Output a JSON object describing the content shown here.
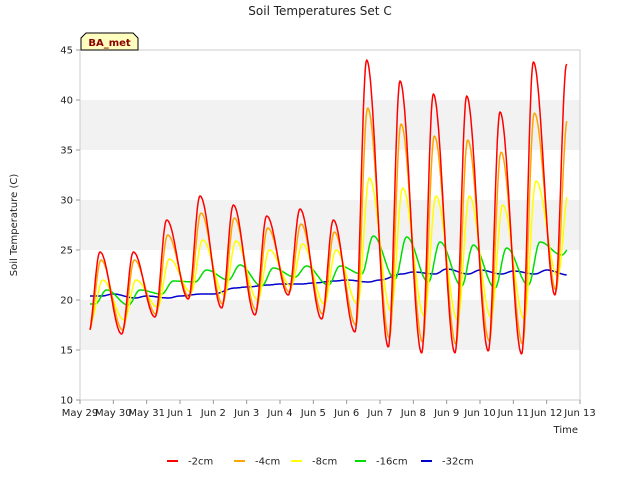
{
  "chart_data": {
    "type": "line",
    "title": "Soil Temperatures Set C",
    "xlabel": "Time",
    "ylabel": "Soil Temperature (C)",
    "badge": "BA_met",
    "ylim": [
      10,
      45
    ],
    "yticks": [
      10,
      15,
      20,
      25,
      30,
      35,
      40,
      45
    ],
    "xlim": [
      "2024-05-29",
      "2024-06-13"
    ],
    "xtick_labels": [
      "May 29",
      "May 30",
      "May 31",
      "Jun 1",
      "Jun 2",
      "Jun 3",
      "Jun 4",
      "Jun 5",
      "Jun 6",
      "Jun 7",
      "Jun 8",
      "Jun 9",
      "Jun 10",
      "Jun 11",
      "Jun 12",
      "Jun 13"
    ],
    "grid": "horizontal bands",
    "legend_position": "bottom",
    "x_dates_daily": [
      "May 29",
      "May 30",
      "May 31",
      "Jun 1",
      "Jun 2",
      "Jun 3",
      "Jun 4",
      "Jun 5",
      "Jun 6",
      "Jun 7",
      "Jun 8",
      "Jun 9",
      "Jun 10",
      "Jun 11",
      "Jun 12"
    ],
    "series": [
      {
        "name": "-2cm",
        "color": "#ff0000",
        "daily_max": [
          null,
          24.8,
          28.0,
          30.4,
          29.5,
          28.4,
          29.1,
          28.0,
          44.0,
          41.9,
          40.6,
          40.4,
          38.8,
          43.8,
          43.6
        ],
        "daily_min": [
          16.6,
          16.6,
          18.3,
          20.1,
          19.2,
          18.5,
          20.5,
          18.1,
          16.8,
          15.3,
          14.7,
          14.7,
          14.9,
          14.6,
          20.5
        ]
      },
      {
        "name": "-4cm",
        "color": "#ffa500",
        "daily_max": [
          null,
          24.0,
          26.5,
          28.7,
          28.2,
          27.2,
          27.6,
          26.8,
          39.2,
          37.6,
          36.4,
          36.0,
          34.8,
          38.7,
          38.2
        ],
        "daily_min": [
          17.0,
          17.0,
          18.6,
          20.3,
          19.6,
          19.0,
          20.8,
          18.6,
          17.5,
          16.2,
          15.8,
          15.6,
          15.9,
          15.6,
          21.0
        ]
      },
      {
        "name": "-8cm",
        "color": "#ffff00",
        "daily_max": [
          null,
          22.0,
          24.1,
          26.0,
          25.9,
          25.0,
          25.6,
          25.0,
          32.2,
          31.2,
          30.4,
          30.4,
          29.5,
          31.9,
          31.4
        ],
        "daily_min": [
          18.0,
          18.0,
          19.3,
          20.8,
          20.5,
          20.0,
          21.4,
          19.6,
          19.6,
          18.9,
          18.4,
          18.0,
          18.3,
          18.1,
          22.4
        ]
      },
      {
        "name": "-16cm",
        "color": "#00dd00",
        "daily_max": [
          null,
          21.0,
          21.9,
          23.0,
          23.5,
          23.2,
          23.4,
          23.4,
          26.4,
          26.3,
          25.8,
          25.5,
          25.2,
          25.8,
          25.8
        ],
        "daily_min": [
          19.6,
          19.5,
          20.6,
          21.8,
          22.0,
          21.4,
          22.3,
          21.5,
          22.6,
          22.1,
          21.8,
          21.4,
          21.2,
          21.5,
          24.5
        ]
      },
      {
        "name": "-32cm",
        "color": "#0000cd",
        "daily_max": [
          20.6,
          20.4,
          20.4,
          20.6,
          21.3,
          21.6,
          21.7,
          22.0,
          22.0,
          22.8,
          23.1,
          23.0,
          22.9,
          23.0,
          23.0
        ],
        "daily_min": [
          20.4,
          20.2,
          20.2,
          20.6,
          21.2,
          21.5,
          21.6,
          21.9,
          21.8,
          22.6,
          22.6,
          22.6,
          22.6,
          22.6,
          22.5
        ]
      }
    ]
  }
}
